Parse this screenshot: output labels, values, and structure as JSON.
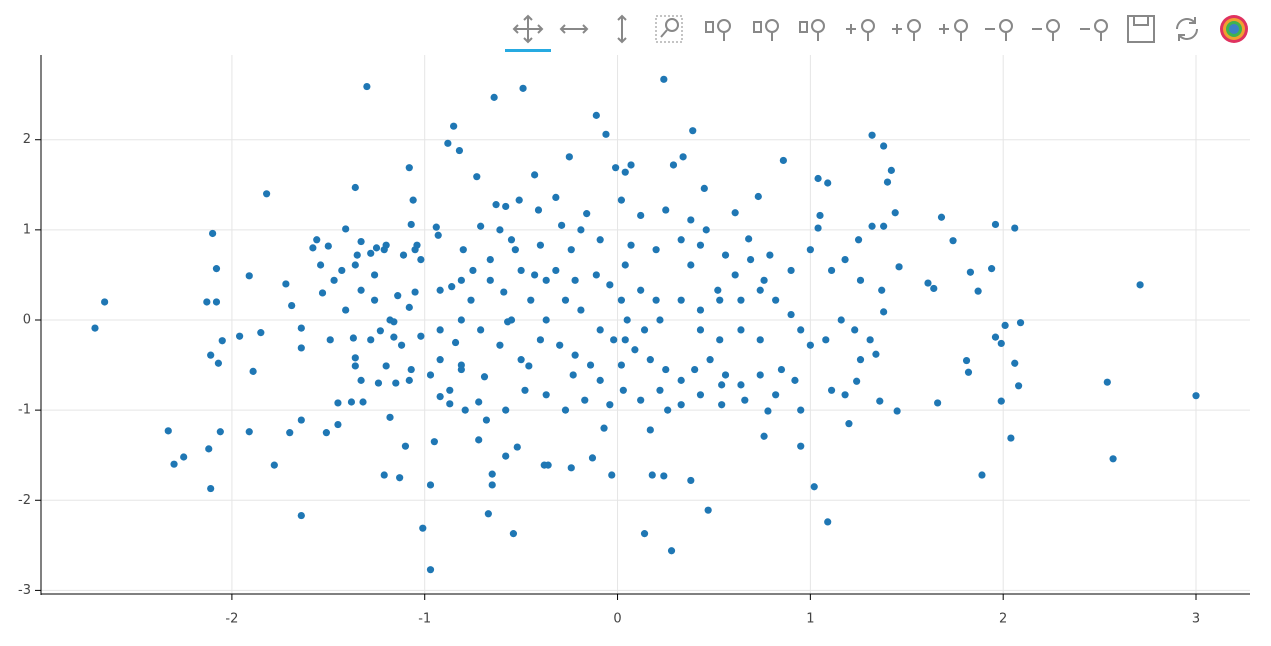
{
  "chart_data": {
    "type": "scatter",
    "color": "#1f77b4",
    "grid": true,
    "xlim": [
      -2.99,
      3.28
    ],
    "ylim": [
      -3.04,
      2.94
    ],
    "xticks": [
      -2,
      -1,
      0,
      1,
      2,
      3
    ],
    "yticks": [
      -3,
      -2,
      -1,
      0,
      1,
      2
    ],
    "x": [
      -2.71,
      -2.66,
      -2.33,
      -2.3,
      -2.25,
      -2.12,
      -2.11,
      -2.13,
      -2.1,
      -2.08,
      -2.08,
      -2.11,
      -2.07,
      -2.06,
      -2.05,
      -1.96,
      -1.91,
      -1.89,
      -1.91,
      -1.85,
      -1.82,
      -1.78,
      -1.72,
      -1.7,
      -1.69,
      -1.64,
      -1.64,
      -1.64,
      -1.64,
      -1.58,
      -1.56,
      -1.54,
      -1.53,
      -1.51,
      -1.5,
      -1.49,
      -1.45,
      -1.45,
      -1.43,
      -1.41,
      -1.38,
      -1.37,
      -1.36,
      -1.36,
      -1.36,
      -1.36,
      -1.35,
      -1.33,
      -1.33,
      -1.32,
      -1.3,
      -1.28,
      -1.26,
      -1.25,
      -1.24,
      -1.23,
      -1.21,
      -1.2,
      -1.21,
      -1.2,
      -1.18,
      -1.18,
      -1.16,
      -1.16,
      -1.15,
      -1.14,
      -1.13,
      -1.11,
      -1.1,
      -1.08,
      -1.08,
      -1.08,
      -1.07,
      -1.06,
      -1.05,
      -1.04,
      -1.05,
      -1.02,
      -1.01,
      -0.97,
      -0.97,
      -0.97,
      -0.95,
      -0.94,
      -0.93,
      -0.92,
      -0.88,
      -0.85,
      -0.82,
      -0.86,
      -0.87,
      -0.84,
      -0.81,
      -0.8,
      -0.75,
      -0.73,
      -0.72,
      -0.72,
      -0.69,
      -0.67,
      -0.65,
      -0.65,
      -0.64,
      -0.63,
      -0.59,
      -0.58,
      -0.58,
      -0.57,
      -0.54,
      -0.52,
      -0.49,
      -0.51,
      -0.46,
      -0.43,
      -0.41,
      -0.38,
      -0.36,
      -0.32,
      -0.25,
      -0.24,
      -0.23,
      -0.16,
      -0.13,
      -0.11,
      -0.06,
      -0.07,
      -0.03,
      -0.02,
      -0.01,
      0.04,
      0.07,
      0.03,
      0.04,
      0.05,
      0.14,
      0.17,
      0.18,
      0.24,
      0.24,
      0.26,
      0.28,
      0.29,
      0.34,
      0.38,
      0.39,
      0.45,
      0.47,
      0.52,
      0.54,
      0.61,
      0.68,
      0.73,
      0.76,
      0.78,
      0.86,
      0.95,
      0.95,
      1.04,
      1.02,
      1.04,
      1.05,
      1.09,
      1.09,
      1.11,
      1.18,
      1.2,
      1.24,
      1.25,
      1.32,
      1.32,
      1.34,
      1.36,
      1.38,
      1.38,
      1.38,
      1.4,
      1.42,
      1.44,
      1.45,
      1.46,
      1.61,
      1.64,
      1.66,
      1.68,
      1.74,
      1.81,
      1.82,
      1.83,
      1.87,
      1.89,
      1.94,
      1.96,
      1.96,
      1.99,
      1.99,
      2.01,
      2.04,
      2.06,
      2.06,
      2.08,
      2.09,
      2.54,
      2.57,
      2.71,
      3.0,
      -0.71,
      -0.53,
      -0.43,
      -0.32,
      -0.27,
      -0.19,
      -0.11,
      0.02,
      0.12,
      0.2,
      0.22,
      0.33,
      0.43,
      0.53,
      0.64,
      0.74,
      0.82,
      0.9,
      0.95,
      1.0,
      1.08,
      1.16,
      1.23,
      1.31,
      1.26,
      -0.4,
      -0.5,
      -0.61,
      -0.71,
      -0.81,
      -0.92,
      -0.76,
      -0.66,
      -0.55,
      -0.45,
      -0.37,
      -0.3,
      -0.22,
      -0.14,
      -0.09,
      0.02,
      0.09,
      0.17,
      0.25,
      0.33,
      0.4,
      0.48,
      0.56,
      0.64,
      0.74,
      0.85,
      0.92,
      0.82,
      0.66,
      0.54,
      0.43,
      0.33,
      0.22,
      0.12,
      -0.04,
      -0.17,
      -0.27,
      -0.37,
      -0.48,
      -0.58,
      -0.68,
      -0.79,
      -0.87,
      -0.55,
      -0.4,
      -0.24,
      -0.09,
      0.07,
      0.2,
      0.33,
      0.43,
      0.56,
      0.69,
      0.79,
      0.9,
      1.0,
      1.11,
      1.18,
      1.26,
      1.37,
      0.12,
      0.02,
      0.25,
      0.38,
      0.46,
      -0.29,
      -0.19,
      -0.37,
      -0.09,
      0.04,
      0.14,
      0.43,
      0.64,
      0.74,
      0.53,
      -1.02,
      -0.92,
      -1.12,
      -1.07,
      -1.28,
      -1.41,
      -1.33,
      -1.47,
      -1.26,
      -0.81,
      -0.66,
      -0.61,
      -0.81,
      -0.92,
      -0.5,
      -0.22,
      -0.04,
      0.38,
      0.61,
      0.76
    ],
    "y": [
      -0.09,
      0.2,
      -1.23,
      -1.6,
      -1.52,
      -1.43,
      -1.87,
      0.2,
      0.96,
      0.57,
      0.2,
      -0.39,
      -0.48,
      -1.24,
      -0.23,
      -0.18,
      0.49,
      -0.57,
      -1.24,
      -0.14,
      1.4,
      -1.61,
      0.4,
      -1.25,
      0.16,
      -0.09,
      -0.31,
      -1.11,
      -2.17,
      0.8,
      0.89,
      0.61,
      0.3,
      -1.25,
      0.82,
      -0.22,
      -1.16,
      -0.92,
      0.55,
      1.01,
      -0.91,
      -0.2,
      1.47,
      0.61,
      -0.42,
      -0.51,
      0.72,
      0.87,
      -0.67,
      -0.91,
      2.59,
      0.74,
      0.22,
      0.8,
      -0.7,
      -0.12,
      0.78,
      -0.51,
      -1.72,
      0.83,
      -1.08,
      0.0,
      -0.02,
      -0.19,
      -0.7,
      0.27,
      -1.75,
      0.72,
      -1.4,
      1.69,
      0.14,
      -0.67,
      1.06,
      1.33,
      0.78,
      0.83,
      0.31,
      -0.18,
      -2.31,
      -0.61,
      -2.77,
      -1.83,
      -1.35,
      1.03,
      0.94,
      -0.85,
      1.96,
      2.15,
      1.88,
      0.37,
      -0.93,
      -0.25,
      -0.55,
      0.78,
      0.55,
      1.59,
      -0.91,
      -1.33,
      -0.63,
      -2.15,
      -1.71,
      -1.83,
      2.47,
      1.28,
      0.31,
      1.26,
      -1.51,
      -0.02,
      -2.37,
      -1.41,
      2.57,
      1.33,
      -0.51,
      1.61,
      1.22,
      -1.61,
      -1.61,
      1.36,
      1.81,
      -1.64,
      -0.61,
      1.18,
      -1.53,
      2.27,
      2.06,
      -1.2,
      -1.72,
      -0.22,
      1.69,
      1.64,
      1.72,
      -0.78,
      0.61,
      0.0,
      -2.37,
      -1.22,
      -1.72,
      2.67,
      -1.73,
      -1.0,
      -2.56,
      1.72,
      1.81,
      -1.78,
      2.1,
      1.46,
      -2.11,
      0.33,
      -0.72,
      1.19,
      0.9,
      1.37,
      -1.29,
      -1.01,
      1.77,
      -1.0,
      -1.4,
      1.02,
      -1.85,
      1.57,
      1.16,
      1.52,
      -2.24,
      -0.78,
      -0.83,
      -1.15,
      -0.68,
      0.89,
      2.05,
      1.04,
      -0.38,
      -0.9,
      1.93,
      1.04,
      0.09,
      1.53,
      1.66,
      1.19,
      -1.01,
      0.59,
      0.41,
      0.35,
      -0.92,
      1.14,
      0.88,
      -0.45,
      -0.58,
      0.53,
      0.32,
      -1.72,
      0.57,
      1.06,
      -0.19,
      -0.26,
      -0.9,
      -0.06,
      -1.31,
      -0.48,
      1.02,
      -0.73,
      -0.03,
      -0.69,
      -1.54,
      0.39,
      -0.84,
      1.04,
      0.78,
      0.5,
      0.55,
      0.22,
      0.11,
      0.5,
      0.22,
      0.33,
      0.22,
      0.0,
      0.22,
      0.11,
      0.22,
      0.22,
      0.33,
      0.22,
      0.06,
      -0.11,
      -0.28,
      -0.22,
      0.0,
      -0.11,
      -0.22,
      -0.44,
      -0.22,
      -0.44,
      -0.28,
      -0.11,
      0.0,
      -0.11,
      0.22,
      0.44,
      0.0,
      0.22,
      0.0,
      -0.28,
      -0.39,
      -0.5,
      -0.67,
      -0.5,
      -0.33,
      -0.44,
      -0.55,
      -0.67,
      -0.55,
      -0.44,
      -0.61,
      -0.72,
      -0.61,
      -0.55,
      -0.67,
      -0.83,
      -0.89,
      -0.94,
      -0.83,
      -0.94,
      -0.78,
      -0.89,
      -0.94,
      -0.89,
      -1.0,
      -0.83,
      -0.78,
      -1.0,
      -1.11,
      -1.0,
      -0.78,
      0.89,
      0.83,
      0.78,
      0.89,
      0.83,
      0.78,
      0.89,
      0.83,
      0.72,
      0.67,
      0.72,
      0.55,
      0.78,
      0.55,
      0.67,
      0.44,
      0.33,
      1.16,
      1.33,
      1.22,
      1.11,
      1.0,
      1.05,
      1.0,
      0.44,
      -0.11,
      -0.22,
      -0.11,
      -0.11,
      -0.11,
      -0.22,
      -0.22,
      0.67,
      0.33,
      -0.28,
      -0.55,
      -0.22,
      0.11,
      0.33,
      0.44,
      0.5,
      0.44,
      0.67,
      1.0,
      -0.5,
      -0.44,
      0.55,
      0.44,
      0.39,
      0.61,
      0.5,
      0.44
    ]
  }
}
